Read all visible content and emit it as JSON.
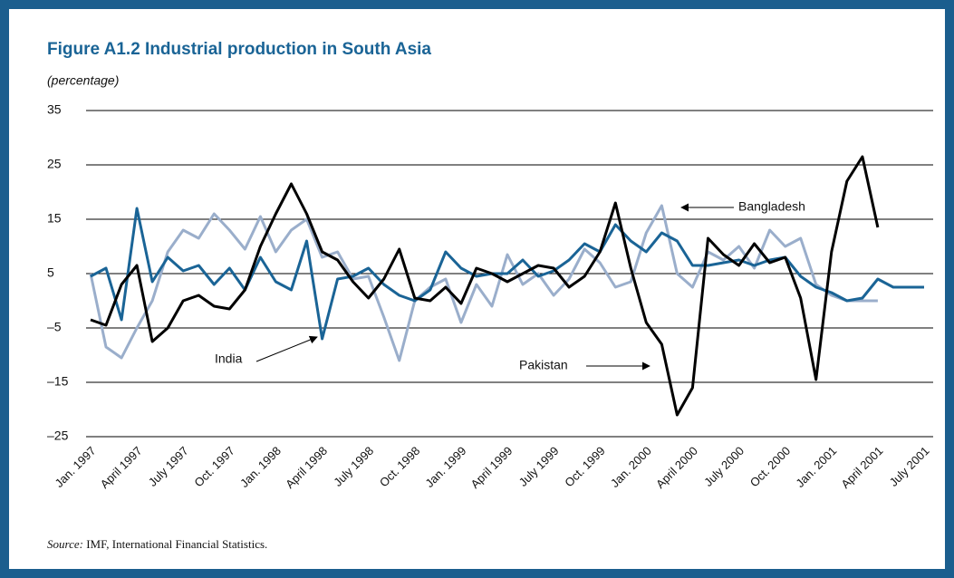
{
  "chart_data": {
    "type": "line",
    "title": "Figure A1.2  Industrial production in South Asia",
    "y_label": "(percentage)",
    "source_label": "Source:",
    "source": "IMF, International Financial Statistics.",
    "categories": [
      "Jan. 1997",
      null,
      null,
      "April 1997",
      null,
      null,
      "July 1997",
      null,
      null,
      "Oct. 1997",
      null,
      null,
      "Jan. 1998",
      null,
      null,
      "April 1998",
      null,
      null,
      "July 1998",
      null,
      null,
      "Oct. 1998",
      null,
      null,
      "Jan. 1999",
      null,
      null,
      "April 1999",
      null,
      null,
      "July 1999",
      null,
      null,
      "Oct. 1999",
      null,
      null,
      "Jan. 2000",
      null,
      null,
      "April 2000",
      null,
      null,
      "July 2000",
      null,
      null,
      "Oct. 2000",
      null,
      null,
      "Jan. 2001",
      null,
      null,
      "April 2001",
      null,
      null,
      "July 2001"
    ],
    "series": [
      {
        "name": "Bangladesh",
        "color": "#9aaecb",
        "values": [
          5,
          -8.5,
          -10.5,
          -5,
          0,
          9,
          13,
          11.5,
          16,
          13,
          9.5,
          15.5,
          9,
          13,
          15,
          8,
          9,
          4,
          4.5,
          -3,
          -11,
          0,
          2.5,
          4,
          -4,
          3,
          -1,
          8.5,
          3,
          5,
          1,
          4,
          9.5,
          7,
          2.5,
          3.5,
          12.5,
          17.5,
          5,
          2.5,
          9,
          7.5,
          10,
          6,
          13,
          10,
          11.5,
          3,
          1,
          0,
          0,
          0,
          null,
          null,
          null
        ]
      },
      {
        "name": "India",
        "color": "#1a6496",
        "values": [
          4.5,
          6,
          -3.5,
          17,
          3.5,
          8,
          5.5,
          6.5,
          3,
          6,
          2,
          8,
          3.5,
          2,
          11,
          -7,
          4,
          4.5,
          6,
          3,
          1,
          0,
          2,
          9,
          6,
          4.5,
          5,
          5,
          7.5,
          4.5,
          5.5,
          7.5,
          10.5,
          9,
          14,
          11,
          9,
          12.5,
          11,
          6.5,
          6.5,
          7,
          7.5,
          6.5,
          7.5,
          8,
          4.5,
          2.5,
          1.5,
          0,
          0.5,
          4,
          2.5,
          2.5,
          2.5
        ]
      },
      {
        "name": "Pakistan",
        "color": "#000000",
        "values": [
          -3.5,
          -4.5,
          3,
          6.5,
          -7.5,
          -5,
          0,
          1,
          -1,
          -1.5,
          2,
          10,
          16,
          21.5,
          16,
          9,
          7.5,
          3.5,
          0.5,
          4,
          9.5,
          0.5,
          0,
          2.5,
          -0.5,
          6,
          5,
          3.5,
          5,
          6.5,
          6,
          2.5,
          4.5,
          9,
          18,
          6,
          -4,
          -8,
          -21,
          -16,
          11.5,
          8.5,
          6.5,
          10.5,
          7,
          8,
          0.5,
          -14.5,
          9,
          22,
          26.5,
          13.5,
          null,
          null,
          null
        ]
      }
    ],
    "ylim": [
      -25,
      35
    ],
    "yticks": [
      {
        "value": -25,
        "label": "–25"
      },
      {
        "value": -15,
        "label": "–15"
      },
      {
        "value": -5,
        "label": "–5"
      },
      5,
      15,
      25,
      35
    ],
    "grid": true
  }
}
